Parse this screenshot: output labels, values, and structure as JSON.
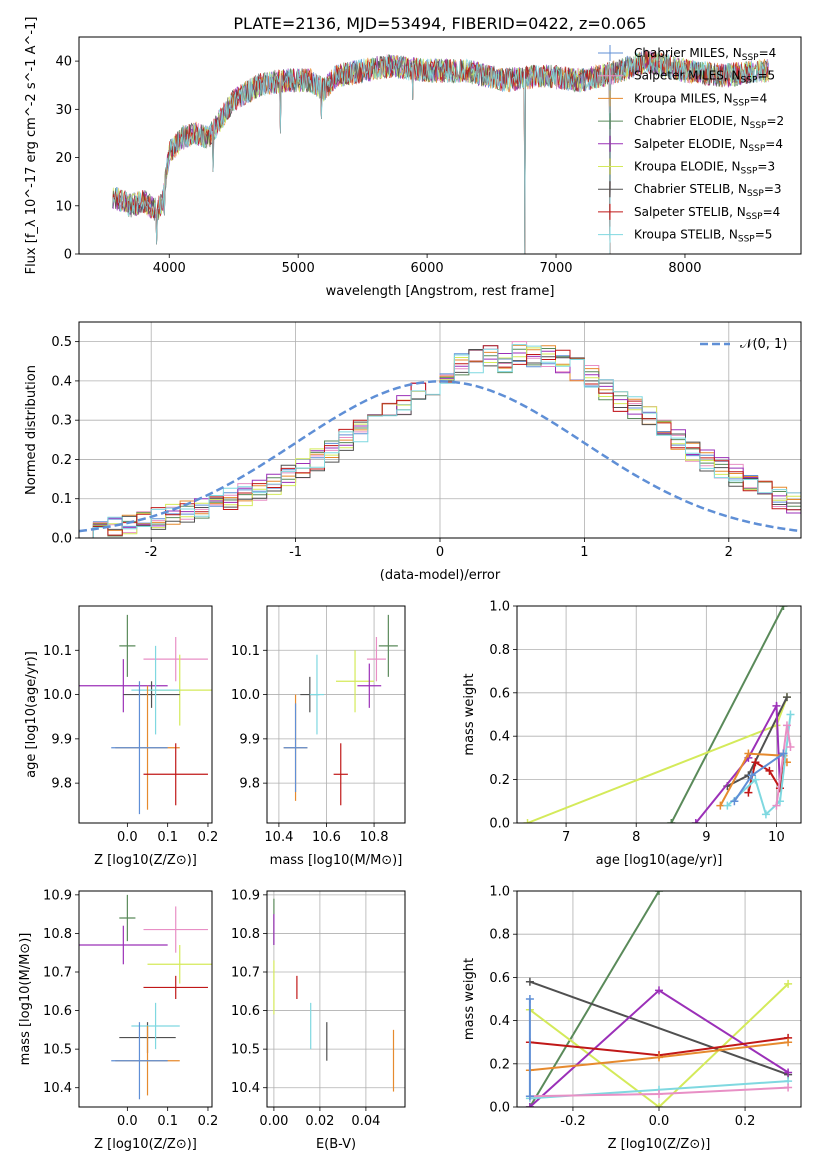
{
  "figure_title": "PLATE=2136, MJD=53494, FIBERID=0422, z=0.065",
  "chart_data": [
    {
      "id": "spectrum",
      "type": "line",
      "xlabel": "wavelength [Angstrom, rest frame]",
      "ylabel": "Flux [f_λ 10^-17 erg cm^-2 s^-1 A^-1]",
      "xlim": [
        3300,
        8900
      ],
      "ylim": [
        0,
        45
      ],
      "xticks": [
        4000,
        5000,
        6000,
        7000,
        8000
      ],
      "yticks": [
        0,
        10,
        20,
        30,
        40
      ],
      "grid": false,
      "legend_position": "top-right",
      "continuum": [
        [
          3560,
          12
        ],
        [
          3700,
          10
        ],
        [
          3800,
          11
        ],
        [
          3900,
          9
        ],
        [
          3950,
          11
        ],
        [
          4000,
          21
        ],
        [
          4100,
          24
        ],
        [
          4200,
          25
        ],
        [
          4300,
          24
        ],
        [
          4500,
          32
        ],
        [
          4700,
          35
        ],
        [
          4900,
          36
        ],
        [
          5100,
          36
        ],
        [
          5200,
          34
        ],
        [
          5300,
          37
        ],
        [
          5500,
          38
        ],
        [
          5700,
          39
        ],
        [
          6000,
          38
        ],
        [
          6300,
          38
        ],
        [
          6600,
          36
        ],
        [
          6900,
          37
        ],
        [
          7200,
          36
        ],
        [
          7500,
          38
        ],
        [
          7700,
          40
        ],
        [
          8000,
          38
        ],
        [
          8300,
          37
        ],
        [
          8600,
          38
        ]
      ],
      "spikes": [
        [
          3900,
          2
        ],
        [
          6760,
          0
        ],
        [
          7420,
          0
        ],
        [
          5890,
          32
        ],
        [
          5180,
          28
        ],
        [
          4340,
          17
        ],
        [
          4860,
          25
        ],
        [
          3960,
          8
        ]
      ],
      "series": [
        {
          "name": "Chabrier MILES, N_SSP=4",
          "color": "#5f8fd6"
        },
        {
          "name": "Salpeter MILES, N_SSP=5",
          "color": "#e88fc5"
        },
        {
          "name": "Kroupa MILES, N_SSP=4",
          "color": "#e68a2e"
        },
        {
          "name": "Chabrier ELODIE, N_SSP=2",
          "color": "#5a8a5a"
        },
        {
          "name": "Salpeter ELODIE, N_SSP=4",
          "color": "#9b30b8"
        },
        {
          "name": "Kroupa ELODIE, N_SSP=3",
          "color": "#d4ea5a"
        },
        {
          "name": "Chabrier STELIB, N_SSP=3",
          "color": "#505050"
        },
        {
          "name": "Salpeter STELIB, N_SSP=4",
          "color": "#c01818"
        },
        {
          "name": "Kroupa STELIB, N_SSP=5",
          "color": "#7fd8e0"
        }
      ],
      "legend_labels": [
        {
          "main": "Chabrier MILES, N",
          "sub": "SSP",
          "tail": "=4"
        },
        {
          "main": "Salpeter MILES, N",
          "sub": "SSP",
          "tail": "=5"
        },
        {
          "main": "Kroupa MILES, N",
          "sub": "SSP",
          "tail": "=4"
        },
        {
          "main": "Chabrier ELODIE, N",
          "sub": "SSP",
          "tail": "=2"
        },
        {
          "main": "Salpeter ELODIE, N",
          "sub": "SSP",
          "tail": "=4"
        },
        {
          "main": "Kroupa ELODIE, N",
          "sub": "SSP",
          "tail": "=3"
        },
        {
          "main": "Chabrier STELIB, N",
          "sub": "SSP",
          "tail": "=3"
        },
        {
          "main": "Salpeter STELIB, N",
          "sub": "SSP",
          "tail": "=4"
        },
        {
          "main": "Kroupa STELIB, N",
          "sub": "SSP",
          "tail": "=5"
        }
      ]
    },
    {
      "id": "residuals",
      "type": "line",
      "xlabel": "(data-model)/error",
      "ylabel": "Normed distribution",
      "xlim": [
        -2.5,
        2.5
      ],
      "ylim": [
        0,
        0.55
      ],
      "xticks": [
        -2,
        -1,
        0,
        1,
        2
      ],
      "yticks": [
        0.0,
        0.1,
        0.2,
        0.3,
        0.4,
        0.5
      ],
      "grid": true,
      "legend_position": "top-right",
      "legend_label": "𝒩(0, 1)",
      "gauss_color": "#5f8fd6",
      "bin_edges_start": -2.5,
      "bin_width": 0.1,
      "hist_shape": [
        0.02,
        0.025,
        0.03,
        0.04,
        0.045,
        0.05,
        0.06,
        0.065,
        0.075,
        0.09,
        0.1,
        0.11,
        0.12,
        0.14,
        0.16,
        0.18,
        0.2,
        0.22,
        0.25,
        0.27,
        0.3,
        0.32,
        0.34,
        0.37,
        0.39,
        0.42,
        0.44,
        0.45,
        0.46,
        0.45,
        0.47,
        0.46,
        0.46,
        0.45,
        0.43,
        0.41,
        0.38,
        0.35,
        0.33,
        0.31,
        0.27,
        0.25,
        0.22,
        0.2,
        0.18,
        0.16,
        0.14,
        0.12,
        0.1,
        0.09
      ]
    },
    {
      "id": "age_vs_Z",
      "type": "scatter",
      "xlabel": "Z [log10(Z/Z⊙)]",
      "ylabel": "age [log10(age/yr)]",
      "xlim": [
        -0.12,
        0.21
      ],
      "ylim": [
        9.71,
        10.2
      ],
      "xticks": [
        0.0,
        0.1,
        0.2
      ],
      "yticks": [
        9.8,
        9.9,
        10.0,
        10.1
      ],
      "grid": false,
      "points": [
        {
          "x": 0.12,
          "y": 10.08,
          "xerr": 0.08,
          "yerr": 0.05,
          "color": "#e88fc5"
        },
        {
          "x": 0.13,
          "y": 10.01,
          "xerr": 0.08,
          "yerr": 0.08,
          "color": "#d4ea5a"
        },
        {
          "x": 0.0,
          "y": 10.11,
          "xerr": 0.02,
          "yerr": 0.07,
          "color": "#5a8a5a"
        },
        {
          "x": -0.01,
          "y": 10.02,
          "xerr": 0.11,
          "yerr": 0.06,
          "color": "#9b30b8"
        },
        {
          "x": 0.06,
          "y": 10.0,
          "xerr": 0.07,
          "yerr": 0.03,
          "color": "#505050"
        },
        {
          "x": 0.07,
          "y": 10.01,
          "xerr": 0.06,
          "yerr": 0.1,
          "color": "#7fd8e0"
        },
        {
          "x": 0.05,
          "y": 9.88,
          "xerr": 0.08,
          "yerr": 0.14,
          "color": "#e68a2e"
        },
        {
          "x": 0.03,
          "y": 9.88,
          "xerr": 0.07,
          "yerr": 0.15,
          "color": "#5f8fd6"
        },
        {
          "x": 0.12,
          "y": 9.82,
          "xerr": 0.08,
          "yerr": 0.07,
          "color": "#c01818"
        }
      ]
    },
    {
      "id": "age_vs_mass",
      "type": "scatter",
      "xlabel": "mass [log10(M/M⊙)]",
      "ylabel": "",
      "xlim": [
        10.35,
        10.93
      ],
      "ylim": [
        9.71,
        10.2
      ],
      "xticks": [
        10.4,
        10.6,
        10.8
      ],
      "yticks": [
        9.8,
        9.9,
        10.0,
        10.1
      ],
      "grid": true,
      "points": [
        {
          "x": 10.81,
          "y": 10.08,
          "xerr": 0.04,
          "yerr": 0.05,
          "color": "#e88fc5"
        },
        {
          "x": 10.72,
          "y": 10.03,
          "xerr": 0.08,
          "yerr": 0.07,
          "color": "#d4ea5a"
        },
        {
          "x": 10.86,
          "y": 10.11,
          "xerr": 0.04,
          "yerr": 0.07,
          "color": "#5a8a5a"
        },
        {
          "x": 10.78,
          "y": 10.02,
          "xerr": 0.05,
          "yerr": 0.05,
          "color": "#9b30b8"
        },
        {
          "x": 10.53,
          "y": 10.0,
          "xerr": 0.04,
          "yerr": 0.04,
          "color": "#505050"
        },
        {
          "x": 10.56,
          "y": 10.0,
          "xerr": 0.03,
          "yerr": 0.09,
          "color": "#7fd8e0"
        },
        {
          "x": 10.47,
          "y": 9.88,
          "xerr": 0.05,
          "yerr": 0.12,
          "color": "#e68a2e"
        },
        {
          "x": 10.47,
          "y": 9.88,
          "xerr": 0.05,
          "yerr": 0.1,
          "color": "#5f8fd6"
        },
        {
          "x": 10.66,
          "y": 9.82,
          "xerr": 0.03,
          "yerr": 0.07,
          "color": "#c01818"
        }
      ]
    },
    {
      "id": "weight_vs_age",
      "type": "line",
      "xlabel": "age [log10(age/yr)]",
      "ylabel": "mass weight",
      "xlim": [
        6.3,
        10.35
      ],
      "ylim": [
        0,
        1
      ],
      "xticks": [
        7,
        8,
        9,
        10
      ],
      "yticks": [
        0.0,
        0.2,
        0.4,
        0.6,
        0.8,
        1.0
      ],
      "grid": true,
      "series": [
        {
          "color": "#5a8a5a",
          "points": [
            [
              8.5,
              0.0
            ],
            [
              10.1,
              1.0
            ]
          ]
        },
        {
          "color": "#d4ea5a",
          "points": [
            [
              6.45,
              0.0
            ],
            [
              10.0,
              0.45
            ],
            [
              10.15,
              0.58
            ]
          ]
        },
        {
          "color": "#505050",
          "points": [
            [
              9.3,
              0.17
            ],
            [
              9.6,
              0.22
            ],
            [
              10.15,
              0.58
            ]
          ]
        },
        {
          "color": "#9b30b8",
          "points": [
            [
              8.85,
              0.0
            ],
            [
              9.6,
              0.3
            ],
            [
              10.0,
              0.54
            ],
            [
              10.05,
              0.16
            ]
          ]
        },
        {
          "color": "#e68a2e",
          "points": [
            [
              9.2,
              0.08
            ],
            [
              9.6,
              0.32
            ],
            [
              10.1,
              0.31
            ],
            [
              10.15,
              0.28
            ]
          ]
        },
        {
          "color": "#c01818",
          "points": [
            [
              9.6,
              0.14
            ],
            [
              9.7,
              0.28
            ],
            [
              9.9,
              0.24
            ],
            [
              10.05,
              0.16
            ],
            [
              10.1,
              0.32
            ]
          ]
        },
        {
          "color": "#7fd8e0",
          "points": [
            [
              9.3,
              0.08
            ],
            [
              9.7,
              0.2
            ],
            [
              9.85,
              0.04
            ],
            [
              10.05,
              0.1
            ],
            [
              10.2,
              0.5
            ]
          ]
        },
        {
          "color": "#e88fc5",
          "points": [
            [
              10.0,
              0.08
            ],
            [
              10.15,
              0.45
            ],
            [
              10.2,
              0.35
            ]
          ]
        },
        {
          "color": "#5f8fd6",
          "points": [
            [
              9.4,
              0.1
            ],
            [
              9.65,
              0.22
            ],
            [
              10.1,
              0.32
            ]
          ]
        }
      ]
    },
    {
      "id": "mass_vs_Z",
      "type": "scatter",
      "xlabel": "Z [log10(Z/Z⊙)]",
      "ylabel": "mass [log10(M/M⊙)]",
      "xlim": [
        -0.12,
        0.21
      ],
      "ylim": [
        10.35,
        10.91
      ],
      "xticks": [
        0.0,
        0.1,
        0.2
      ],
      "yticks": [
        10.4,
        10.5,
        10.6,
        10.7,
        10.8,
        10.9
      ],
      "grid": false,
      "points": [
        {
          "x": 0.12,
          "y": 10.81,
          "xerr": 0.08,
          "yerr": 0.06,
          "color": "#e88fc5"
        },
        {
          "x": 0.13,
          "y": 10.72,
          "xerr": 0.08,
          "yerr": 0.05,
          "color": "#d4ea5a"
        },
        {
          "x": 0.0,
          "y": 10.84,
          "xerr": 0.02,
          "yerr": 0.06,
          "color": "#5a8a5a"
        },
        {
          "x": -0.01,
          "y": 10.77,
          "xerr": 0.11,
          "yerr": 0.05,
          "color": "#9b30b8"
        },
        {
          "x": 0.05,
          "y": 10.53,
          "xerr": 0.07,
          "yerr": 0.04,
          "color": "#505050"
        },
        {
          "x": 0.07,
          "y": 10.56,
          "xerr": 0.06,
          "yerr": 0.06,
          "color": "#7fd8e0"
        },
        {
          "x": 0.05,
          "y": 10.47,
          "xerr": 0.08,
          "yerr": 0.09,
          "color": "#e68a2e"
        },
        {
          "x": 0.03,
          "y": 10.47,
          "xerr": 0.07,
          "yerr": 0.1,
          "color": "#5f8fd6"
        },
        {
          "x": 0.12,
          "y": 10.66,
          "xerr": 0.08,
          "yerr": 0.03,
          "color": "#c01818"
        }
      ]
    },
    {
      "id": "mass_vs_ebv",
      "type": "scatter",
      "xlabel": "E(B-V)",
      "ylabel": "",
      "xlim": [
        -0.003,
        0.057
      ],
      "ylim": [
        10.35,
        10.91
      ],
      "xticks": [
        0.0,
        0.02,
        0.04
      ],
      "yticks": [
        10.4,
        10.5,
        10.6,
        10.7,
        10.8,
        10.9
      ],
      "grid": true,
      "points": [
        {
          "x": 0.0,
          "y": 10.83,
          "xerr": 0,
          "yerr": 0.06,
          "color": "#5a8a5a"
        },
        {
          "x": 0.0,
          "y": 10.81,
          "xerr": 0,
          "yerr": 0.04,
          "color": "#9b30b8"
        },
        {
          "x": 0.0,
          "y": 10.66,
          "xerr": 0,
          "yerr": 0.07,
          "color": "#d4ea5a"
        },
        {
          "x": 0.01,
          "y": 10.66,
          "xerr": 0,
          "yerr": 0.03,
          "color": "#c01818"
        },
        {
          "x": 0.016,
          "y": 10.56,
          "xerr": 0,
          "yerr": 0.06,
          "color": "#7fd8e0"
        },
        {
          "x": 0.023,
          "y": 10.52,
          "xerr": 0,
          "yerr": 0.05,
          "color": "#505050"
        },
        {
          "x": 0.052,
          "y": 10.47,
          "xerr": 0,
          "yerr": 0.08,
          "color": "#e68a2e"
        }
      ]
    },
    {
      "id": "weight_vs_Z",
      "type": "line",
      "xlabel": "Z [log10(Z/Z⊙)]",
      "ylabel": "mass weight",
      "xlim": [
        -0.33,
        0.33
      ],
      "ylim": [
        0,
        1
      ],
      "xticks": [
        -0.2,
        0.0,
        0.2
      ],
      "yticks": [
        0.0,
        0.2,
        0.4,
        0.6,
        0.8,
        1.0
      ],
      "grid": true,
      "series": [
        {
          "color": "#5a8a5a",
          "points": [
            [
              -0.3,
              0.0
            ],
            [
              0.0,
              1.0
            ]
          ]
        },
        {
          "color": "#505050",
          "points": [
            [
              -0.3,
              0.58
            ],
            [
              0.3,
              0.15
            ]
          ]
        },
        {
          "color": "#d4ea5a",
          "points": [
            [
              -0.3,
              0.45
            ],
            [
              0.0,
              0.0
            ],
            [
              0.3,
              0.57
            ]
          ]
        },
        {
          "color": "#9b30b8",
          "points": [
            [
              -0.3,
              0.0
            ],
            [
              0.0,
              0.54
            ],
            [
              0.3,
              0.16
            ]
          ]
        },
        {
          "color": "#c01818",
          "points": [
            [
              -0.3,
              0.3
            ],
            [
              0.0,
              0.24
            ],
            [
              0.3,
              0.32
            ]
          ]
        },
        {
          "color": "#e68a2e",
          "points": [
            [
              -0.3,
              0.17
            ],
            [
              0.0,
              0.23
            ],
            [
              0.3,
              0.3
            ]
          ]
        },
        {
          "color": "#7fd8e0",
          "points": [
            [
              -0.3,
              0.04
            ],
            [
              0.0,
              0.08
            ],
            [
              0.3,
              0.12
            ]
          ]
        },
        {
          "color": "#e88fc5",
          "points": [
            [
              -0.3,
              0.05
            ],
            [
              0.0,
              0.06
            ],
            [
              0.3,
              0.09
            ]
          ]
        },
        {
          "color": "#5f8fd6",
          "points": [
            [
              -0.3,
              0.5
            ],
            [
              -0.3,
              0.05
            ]
          ]
        }
      ]
    }
  ]
}
